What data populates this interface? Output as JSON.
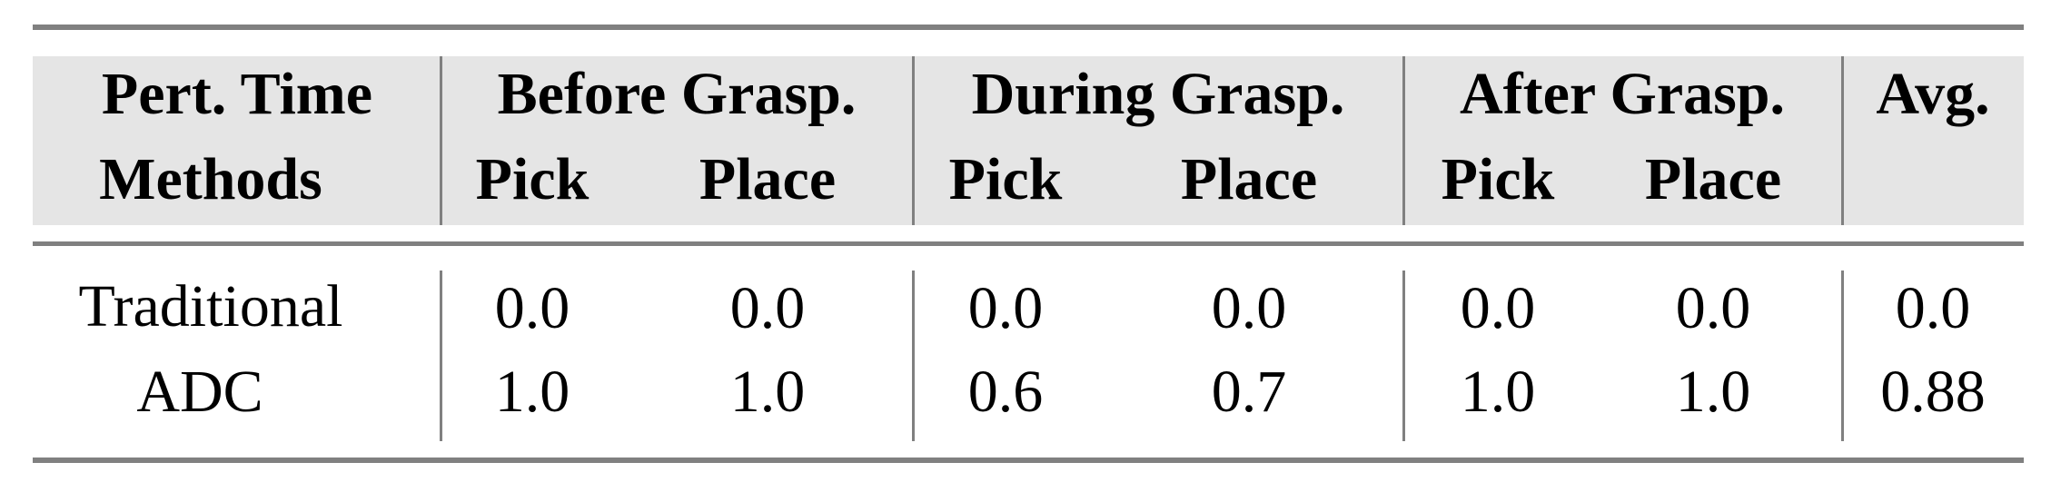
{
  "table": {
    "header_row1": {
      "first": "Pert. Time",
      "groups": [
        "Before Grasp.",
        "During Grasp.",
        "After Grasp."
      ],
      "avg": "Avg."
    },
    "header_row2": {
      "first": "Methods",
      "subcols": [
        "Pick",
        "Place",
        "Pick",
        "Place",
        "Pick",
        "Place"
      ]
    },
    "rows": [
      {
        "method": "Traditional",
        "values": [
          "0.0",
          "0.0",
          "0.0",
          "0.0",
          "0.0",
          "0.0"
        ],
        "avg": "0.0"
      },
      {
        "method": "ADC",
        "values": [
          "1.0",
          "1.0",
          "0.6",
          "0.7",
          "1.0",
          "1.0"
        ],
        "avg": "0.88"
      }
    ]
  },
  "colors": {
    "rule": "#808080",
    "header_shade": "#e5e5e5"
  }
}
